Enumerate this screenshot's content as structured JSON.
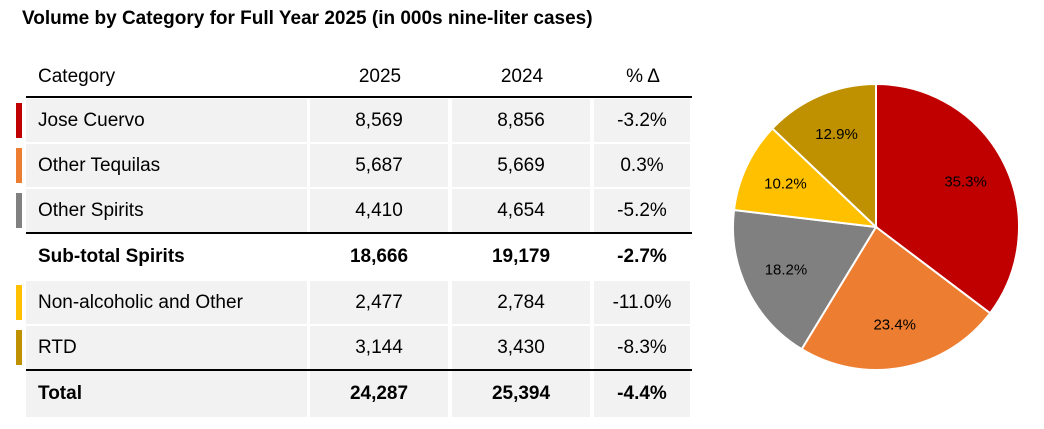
{
  "title": "Volume by Category for Full Year 2025 (in 000s nine-liter cases)",
  "table": {
    "header": [
      "Category",
      "2025",
      "2024",
      "% Δ"
    ],
    "rows": [
      {
        "cells": [
          "Jose Cuervo",
          "8,569",
          "8,856",
          "-3.2%"
        ],
        "color": "#c00000",
        "shaded": true
      },
      {
        "cells": [
          "Other Tequilas",
          "5,687",
          "5,669",
          "0.3%"
        ],
        "color": "#ed7d31",
        "shaded": true
      },
      {
        "cells": [
          "Other Spirits",
          "4,410",
          "4,654",
          "-5.2%"
        ],
        "color": "#808080",
        "shaded": true
      },
      {
        "cells": [
          "Sub-total Spirits",
          "18,666",
          "19,179",
          "-2.7%"
        ],
        "bold": true,
        "rule": true
      },
      {
        "cells": [
          "Non-alcoholic and Other",
          "2,477",
          "2,784",
          "-11.0%"
        ],
        "color": "#ffc000",
        "shaded": true
      },
      {
        "cells": [
          "RTD",
          "3,144",
          "3,430",
          "-8.3%"
        ],
        "color": "#bf9000",
        "shaded": true
      },
      {
        "cells": [
          "Total",
          "24,287",
          "25,394",
          "-4.4%"
        ],
        "bold": true,
        "rule": true,
        "shaded": true
      }
    ]
  },
  "chart_data": {
    "type": "pie",
    "values": [
      35.3,
      23.4,
      18.2,
      10.2,
      12.9
    ],
    "value_labels": [
      "35.3%",
      "23.4%",
      "18.2%",
      "10.2%",
      "12.9%"
    ],
    "colors": [
      "#c00000",
      "#ed7d31",
      "#808080",
      "#ffc000",
      "#bf9000"
    ]
  }
}
